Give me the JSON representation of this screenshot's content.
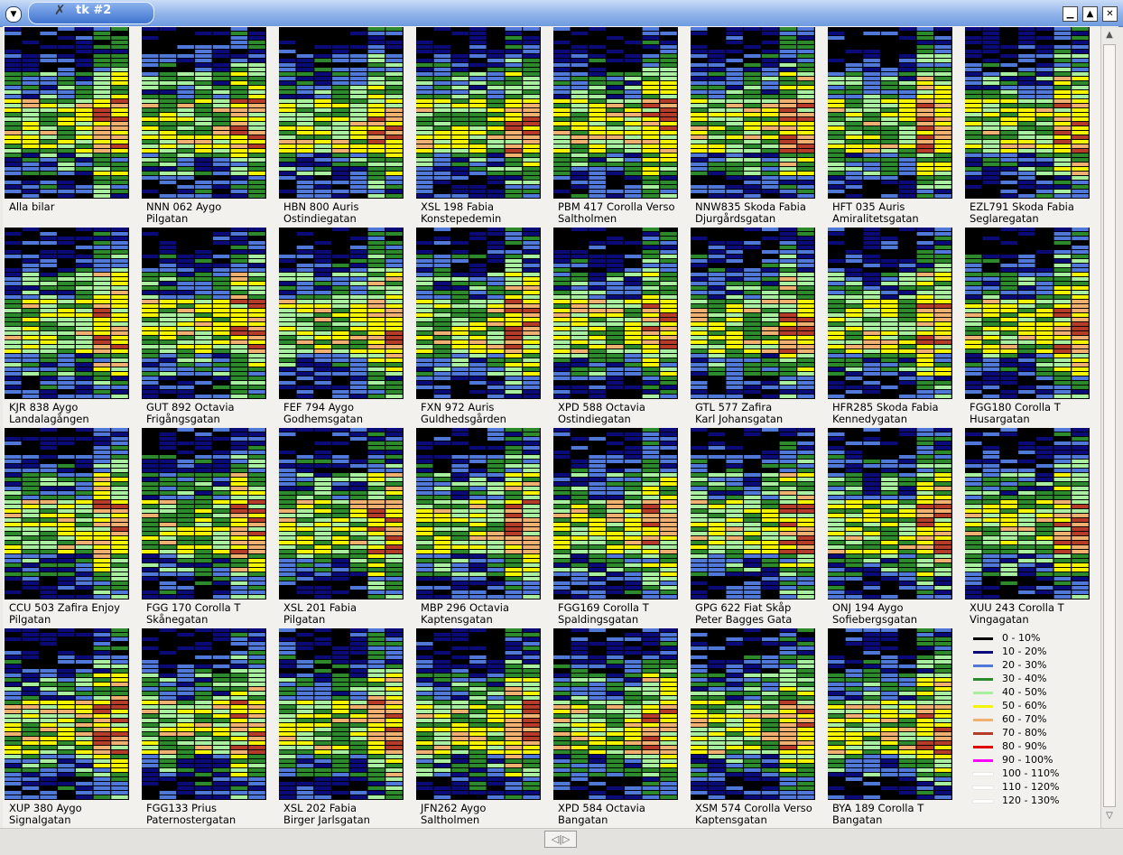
{
  "window": {
    "title": "tk #2",
    "menu_icon": "chevron-down-icon",
    "app_icon": "tk-feather-icon",
    "controls": [
      "minimize-icon",
      "maximize-icon",
      "close-icon"
    ]
  },
  "scrollbars": {
    "vertical": {
      "up_glyph": "▲",
      "down_glyph": "▽"
    },
    "horizontal_grip": "◁|▷"
  },
  "panels": [
    {
      "line1": "Alla bilar",
      "line2": ""
    },
    {
      "line1": "NNN 062 Aygo",
      "line2": "Pilgatan"
    },
    {
      "line1": "HBN 800 Auris",
      "line2": "Ostindiegatan"
    },
    {
      "line1": "XSL 198 Fabia",
      "line2": "Konstepedemin"
    },
    {
      "line1": "PBM 417 Corolla Verso",
      "line2": "Saltholmen"
    },
    {
      "line1": "NNW835 Skoda Fabia",
      "line2": "Djurgårdsgatan"
    },
    {
      "line1": "HFT 035 Auris",
      "line2": "Amiralitetsgatan"
    },
    {
      "line1": "EZL791 Skoda Fabia",
      "line2": "Seglaregatan"
    },
    {
      "line1": "KJR 838 Aygo",
      "line2": "Landalagången"
    },
    {
      "line1": "GUT 892 Octavia",
      "line2": "Frigångsgatan"
    },
    {
      "line1": "FEF 794 Aygo",
      "line2": "Godhemsgatan"
    },
    {
      "line1": "FXN 972 Auris",
      "line2": "Guldhedsgården"
    },
    {
      "line1": "XPD 588 Octavia",
      "line2": "Ostindiegatan"
    },
    {
      "line1": "GTL 577 Zafira",
      "line2": "Karl Johansgatan"
    },
    {
      "line1": "HFR285 Skoda Fabia",
      "line2": "Kennedygatan"
    },
    {
      "line1": "FGG180 Corolla T",
      "line2": "Husargatan"
    },
    {
      "line1": "CCU 503 Zafira Enjoy",
      "line2": "Pilgatan"
    },
    {
      "line1": "FGG 170 Corolla T",
      "line2": "Skånegatan"
    },
    {
      "line1": "XSL 201 Fabia",
      "line2": "Pilgatan"
    },
    {
      "line1": "MBP 296 Octavia",
      "line2": "Kaptensgatan"
    },
    {
      "line1": "FGG169 Corolla T",
      "line2": "Spaldingsgatan"
    },
    {
      "line1": "GPG 622 Fiat Skåp",
      "line2": "Peter Bagges Gata"
    },
    {
      "line1": "ONJ 194 Aygo",
      "line2": "Sofiebergsgatan"
    },
    {
      "line1": "XUU 243 Corolla T",
      "line2": "Vingagatan"
    },
    {
      "line1": "XUP 380 Aygo",
      "line2": "Signalgatan"
    },
    {
      "line1": "FGG133 Prius",
      "line2": "Paternostergatan"
    },
    {
      "line1": "XSL 202 Fabia",
      "line2": "Birger Jarlsgatan"
    },
    {
      "line1": "JFN262 Aygo",
      "line2": "Saltholmen"
    },
    {
      "line1": "XPD 584 Octavia",
      "line2": "Bangatan"
    },
    {
      "line1": "XSM 574 Corolla Verso",
      "line2": "Kaptensgatan"
    },
    {
      "line1": "BYA 189 Corolla T",
      "line2": "Bangatan"
    }
  ],
  "legend": [
    {
      "label": "0 - 10%",
      "color": "#000000"
    },
    {
      "label": "10 - 20%",
      "color": "#0a0a78"
    },
    {
      "label": "20 - 30%",
      "color": "#4f78d8"
    },
    {
      "label": "30 - 40%",
      "color": "#2c8a2c"
    },
    {
      "label": "40 - 50%",
      "color": "#a8f0a0"
    },
    {
      "label": "50 - 60%",
      "color": "#f5f500"
    },
    {
      "label": "60 - 70%",
      "color": "#f0b070"
    },
    {
      "label": "70 - 80%",
      "color": "#b43c28"
    },
    {
      "label": "80 - 90%",
      "color": "#e00000"
    },
    {
      "label": "90 - 100%",
      "color": "#ff00ff"
    },
    {
      "label": "100 - 110%",
      "color": "#ffffff"
    },
    {
      "label": "110 - 120%",
      "color": "#ffffff"
    },
    {
      "label": "120 - 130%",
      "color": "#ffffff"
    }
  ]
}
